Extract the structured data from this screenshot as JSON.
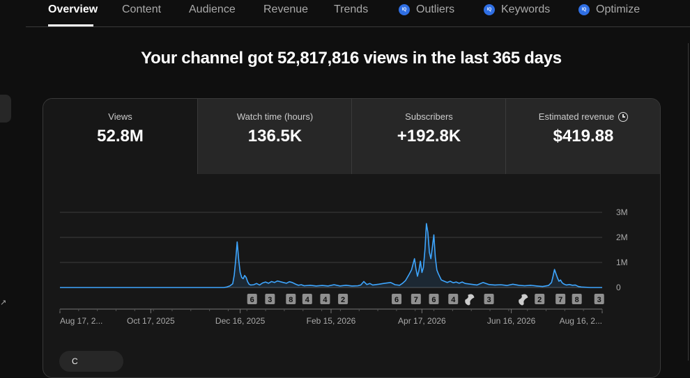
{
  "tabs": [
    {
      "label": "Overview",
      "active": true,
      "badge": false
    },
    {
      "label": "Content",
      "active": false,
      "badge": false
    },
    {
      "label": "Audience",
      "active": false,
      "badge": false
    },
    {
      "label": "Revenue",
      "active": false,
      "badge": false
    },
    {
      "label": "Trends",
      "active": false,
      "badge": false
    },
    {
      "label": "Outliers",
      "active": false,
      "badge": true
    },
    {
      "label": "Keywords",
      "active": false,
      "badge": true
    },
    {
      "label": "Optimize",
      "active": false,
      "badge": true
    }
  ],
  "badge_text": "IQ",
  "headline": "Your channel got 52,817,816 views in the last 365 days",
  "metrics": [
    {
      "label": "Views",
      "value": "52.8M",
      "selected": true
    },
    {
      "label": "Watch time (hours)",
      "value": "136.5K",
      "selected": false
    },
    {
      "label": "Subscribers",
      "value": "+192.8K",
      "selected": false
    },
    {
      "label": "Estimated revenue",
      "value": "$419.88",
      "selected": false,
      "icon": "clock-icon"
    }
  ],
  "colors": {
    "line": "#3ea6ff",
    "grid": "#3d3d3d",
    "marker_bg": "#909090",
    "tab_active": "#ffffff",
    "tab_inactive": "#aaaaaa",
    "badge": "#2f6fe4"
  },
  "chart_data": {
    "type": "area",
    "series_name": "Views",
    "y_tick_labels": [
      "3M",
      "2M",
      "1M",
      "0"
    ],
    "y_ticks": [
      3000000,
      2000000,
      1000000,
      0
    ],
    "ylim": [
      0,
      3000000
    ],
    "x_tick_labels": [
      "Aug 17, 2...",
      "Oct 17, 2025",
      "Dec 16, 2025",
      "Feb 15, 2026",
      "Apr 17, 2026",
      "Jun 16, 2026",
      "Aug 16, 2..."
    ],
    "x_tick_days": [
      0,
      61,
      121,
      182,
      243,
      303,
      364
    ],
    "grid": true,
    "points": [
      [
        0,
        0
      ],
      [
        110,
        0
      ],
      [
        112,
        20000
      ],
      [
        114,
        60000
      ],
      [
        116,
        150000
      ],
      [
        117,
        500000
      ],
      [
        118,
        1100000
      ],
      [
        119,
        1820000
      ],
      [
        120,
        1100000
      ],
      [
        121,
        600000
      ],
      [
        122,
        400000
      ],
      [
        123,
        350000
      ],
      [
        124,
        480000
      ],
      [
        125,
        400000
      ],
      [
        126,
        230000
      ],
      [
        127,
        130000
      ],
      [
        128,
        100000
      ],
      [
        130,
        110000
      ],
      [
        132,
        160000
      ],
      [
        134,
        100000
      ],
      [
        136,
        180000
      ],
      [
        138,
        220000
      ],
      [
        140,
        170000
      ],
      [
        142,
        240000
      ],
      [
        144,
        200000
      ],
      [
        146,
        260000
      ],
      [
        148,
        230000
      ],
      [
        150,
        200000
      ],
      [
        152,
        170000
      ],
      [
        154,
        230000
      ],
      [
        156,
        200000
      ],
      [
        158,
        140000
      ],
      [
        160,
        90000
      ],
      [
        162,
        110000
      ],
      [
        164,
        70000
      ],
      [
        168,
        90000
      ],
      [
        172,
        60000
      ],
      [
        176,
        80000
      ],
      [
        180,
        60000
      ],
      [
        184,
        110000
      ],
      [
        188,
        60000
      ],
      [
        192,
        90000
      ],
      [
        196,
        60000
      ],
      [
        200,
        70000
      ],
      [
        202,
        100000
      ],
      [
        204,
        240000
      ],
      [
        206,
        120000
      ],
      [
        208,
        160000
      ],
      [
        210,
        100000
      ],
      [
        214,
        130000
      ],
      [
        218,
        170000
      ],
      [
        222,
        200000
      ],
      [
        225,
        110000
      ],
      [
        228,
        90000
      ],
      [
        230,
        170000
      ],
      [
        232,
        280000
      ],
      [
        234,
        480000
      ],
      [
        236,
        700000
      ],
      [
        238,
        1150000
      ],
      [
        239,
        750000
      ],
      [
        240,
        450000
      ],
      [
        241,
        680000
      ],
      [
        242,
        1050000
      ],
      [
        243,
        600000
      ],
      [
        244,
        800000
      ],
      [
        245,
        1500000
      ],
      [
        246,
        2550000
      ],
      [
        247,
        2200000
      ],
      [
        248,
        1400000
      ],
      [
        249,
        1150000
      ],
      [
        250,
        1600000
      ],
      [
        251,
        2100000
      ],
      [
        252,
        1200000
      ],
      [
        253,
        700000
      ],
      [
        254,
        550000
      ],
      [
        256,
        300000
      ],
      [
        258,
        250000
      ],
      [
        260,
        200000
      ],
      [
        262,
        250000
      ],
      [
        264,
        190000
      ],
      [
        266,
        220000
      ],
      [
        268,
        170000
      ],
      [
        270,
        220000
      ],
      [
        272,
        160000
      ],
      [
        276,
        130000
      ],
      [
        280,
        100000
      ],
      [
        284,
        200000
      ],
      [
        288,
        120000
      ],
      [
        292,
        100000
      ],
      [
        296,
        110000
      ],
      [
        300,
        80000
      ],
      [
        304,
        130000
      ],
      [
        308,
        90000
      ],
      [
        312,
        70000
      ],
      [
        316,
        90000
      ],
      [
        320,
        60000
      ],
      [
        324,
        40000
      ],
      [
        328,
        80000
      ],
      [
        330,
        200000
      ],
      [
        331,
        450000
      ],
      [
        332,
        720000
      ],
      [
        333,
        550000
      ],
      [
        334,
        380000
      ],
      [
        335,
        250000
      ],
      [
        336,
        300000
      ],
      [
        337,
        200000
      ],
      [
        338,
        150000
      ],
      [
        339,
        120000
      ],
      [
        340,
        100000
      ],
      [
        342,
        120000
      ],
      [
        344,
        90000
      ],
      [
        346,
        100000
      ],
      [
        348,
        40000
      ],
      [
        350,
        20000
      ],
      [
        356,
        0
      ],
      [
        364,
        0
      ]
    ],
    "markers": [
      {
        "day": 129,
        "label": "6"
      },
      {
        "day": 141,
        "label": "3"
      },
      {
        "day": 155,
        "label": "8"
      },
      {
        "day": 166,
        "label": "4"
      },
      {
        "day": 178,
        "label": "4"
      },
      {
        "day": 190,
        "label": "2"
      },
      {
        "day": 226,
        "label": "6"
      },
      {
        "day": 239,
        "label": "7"
      },
      {
        "day": 251,
        "label": "6"
      },
      {
        "day": 264,
        "label": "4"
      },
      {
        "day": 288,
        "label": "3"
      },
      {
        "day": 322,
        "label": "2"
      },
      {
        "day": 336,
        "label": "7"
      },
      {
        "day": 347,
        "label": "8"
      },
      {
        "day": 362,
        "label": "3"
      }
    ],
    "shorts_markers": [
      {
        "day": 276
      },
      {
        "day": 312
      }
    ]
  },
  "bottom_button": "C"
}
